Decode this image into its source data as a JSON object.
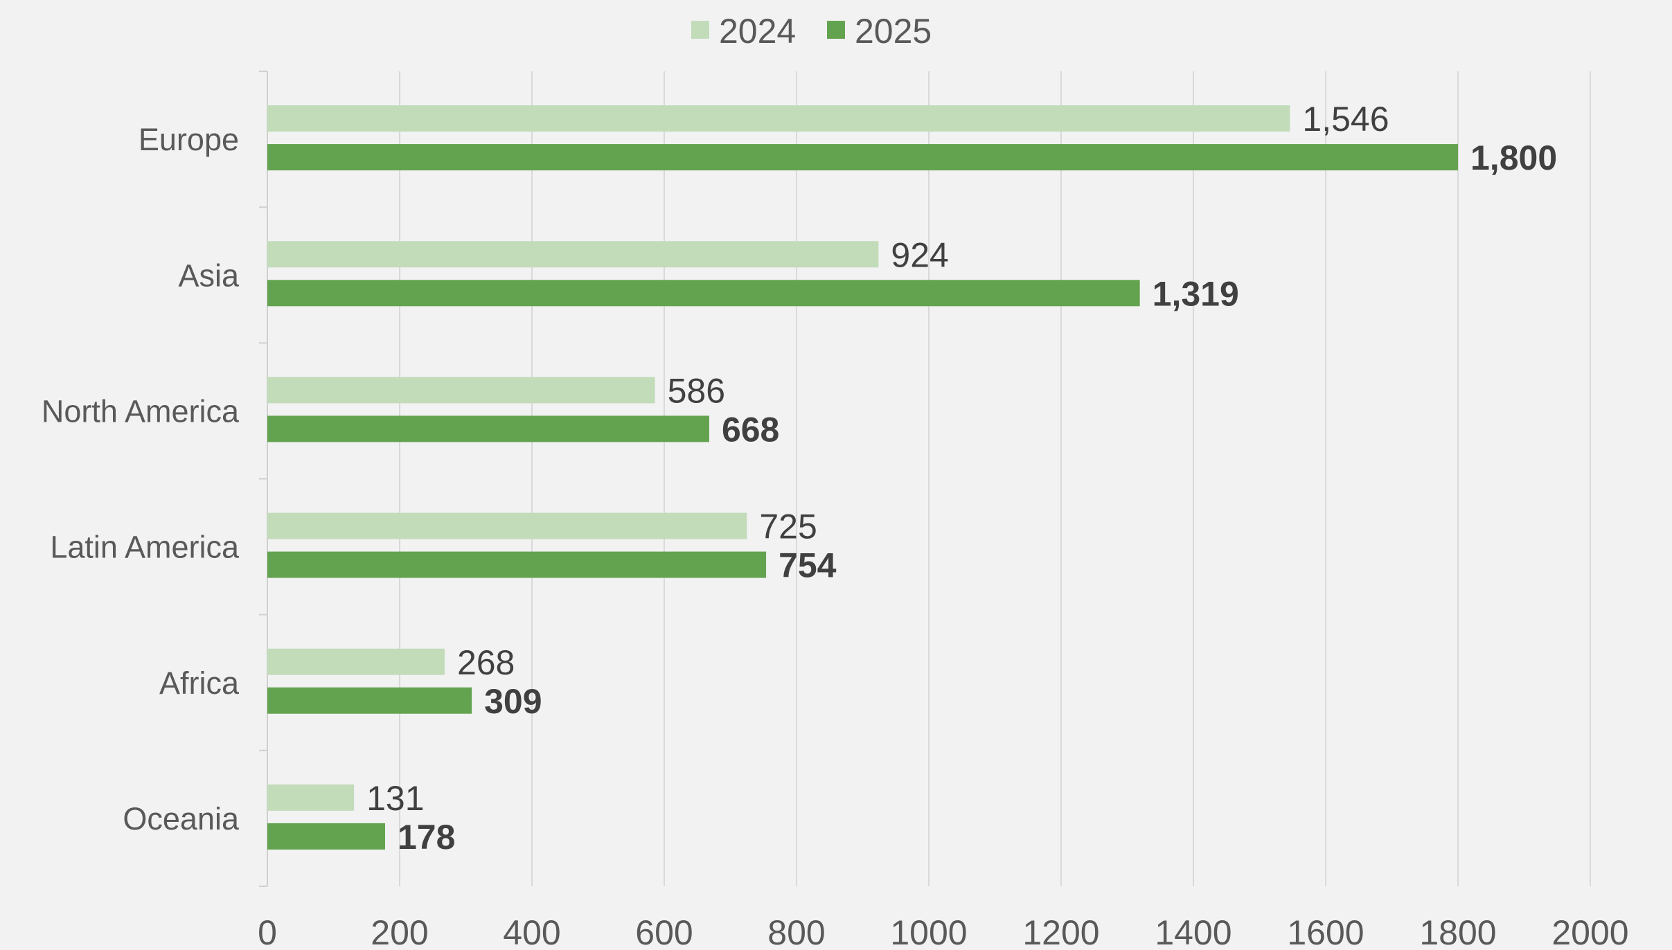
{
  "chart_data": {
    "type": "bar",
    "orientation": "horizontal",
    "categories": [
      "Europe",
      "Asia",
      "North America",
      "Latin America",
      "Africa",
      "Oceania"
    ],
    "series": [
      {
        "name": "2024",
        "values": [
          1546,
          924,
          586,
          725,
          268,
          131
        ],
        "labels": [
          "1,546",
          "924",
          "586",
          "725",
          "268",
          "131"
        ],
        "color": "#c2dcba",
        "label_weight": "normal"
      },
      {
        "name": "2025",
        "values": [
          1800,
          1319,
          668,
          754,
          309,
          178
        ],
        "labels": [
          "1,800",
          "1,319",
          "668",
          "754",
          "309",
          "178"
        ],
        "color": "#63a34f",
        "label_weight": "bold"
      }
    ],
    "xlim": [
      0,
      2000
    ],
    "xticks": [
      0,
      200,
      400,
      600,
      800,
      1000,
      1200,
      1400,
      1600,
      1800,
      2000
    ],
    "xtick_labels": [
      "0",
      "200",
      "400",
      "600",
      "800",
      "1000",
      "1200",
      "1400",
      "1600",
      "1800",
      "2000"
    ],
    "grid": "vertical",
    "legend_position": "top-center",
    "background": "#f2f2f2",
    "gridline_color": "#d9d9d9",
    "text_color": "#595959"
  }
}
